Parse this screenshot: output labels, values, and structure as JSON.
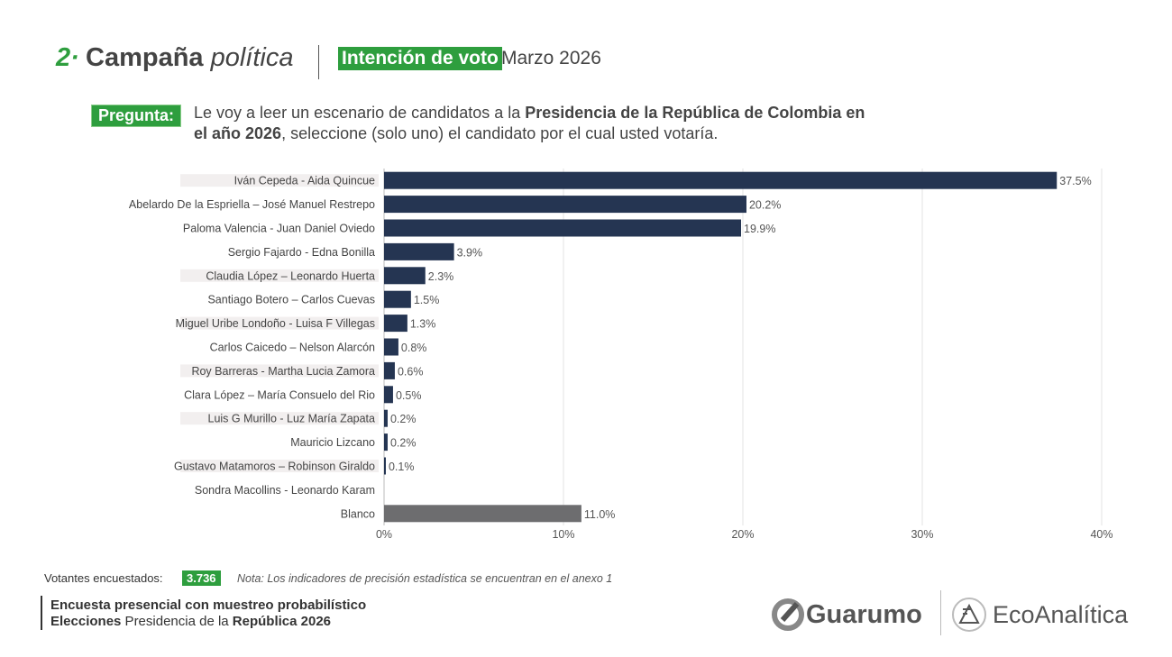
{
  "header": {
    "number": "2·",
    "title_bold": "Campaña",
    "title_italic": "política",
    "badge": "Intención de voto",
    "month": "Marzo  2026"
  },
  "question": {
    "label": "Pregunta:",
    "text_1": "Le voy a leer un escenario de candidatos a la ",
    "text_bold": "Presidencia de la República de Colombia en el año 2026",
    "text_2": ", seleccione (solo uno) el candidato por el cual usted votaría."
  },
  "chart_data": {
    "type": "bar",
    "orientation": "horizontal",
    "categories": [
      "Iván Cepeda - Aida Quincue",
      "Abelardo De la Espriella – José Manuel Restrepo",
      "Paloma Valencia - Juan Daniel Oviedo",
      "Sergio Fajardo - Edna Bonilla",
      "Claudia López – Leonardo Huerta",
      "Santiago Botero – Carlos Cuevas",
      "Miguel Uribe Londoño - Luisa F Villegas",
      "Carlos Caicedo – Nelson Alarcón",
      "Roy Barreras - Martha Lucia Zamora",
      "Clara López – María Consuelo del Rio",
      "Luis G Murillo - Luz María Zapata",
      "Mauricio Lizcano",
      "Gustavo Matamoros – Robinson Giraldo",
      "Sondra Macollins - Leonardo Karam",
      "Blanco"
    ],
    "values": [
      37.5,
      20.2,
      19.9,
      3.9,
      2.3,
      1.5,
      1.3,
      0.8,
      0.6,
      0.5,
      0.2,
      0.2,
      0.1,
      null,
      11.0
    ],
    "labels": [
      "37.5%",
      "20.2%",
      "19.9%",
      "3.9%",
      "2.3%",
      "1.5%",
      "1.3%",
      "0.8%",
      "0.6%",
      "0.5%",
      "0.2%",
      "0.2%",
      "0.1%",
      "",
      "11.0%"
    ],
    "xlim": [
      0,
      40
    ],
    "xticks": [
      "0%",
      "10%",
      "20%",
      "30%",
      "40%"
    ],
    "grid": "vertical",
    "colors": {
      "candidate": "#253552",
      "blanco": "#6d6d6f"
    }
  },
  "footer": {
    "voters_label": "Votantes encuestados:",
    "voters_value": "3.736",
    "note": "Nota: Los indicadores de precisión estadística se encuentran en el anexo 1",
    "line1": "Encuesta presencial con muestreo probabilístico",
    "line2_bold": "Elecciones",
    "line2_mid": " Presidencia de la ",
    "line2_bold2": "República 2026"
  },
  "logos": {
    "guarumo": "Guarumo",
    "ecoanalitica": "EcoAnalítica"
  }
}
